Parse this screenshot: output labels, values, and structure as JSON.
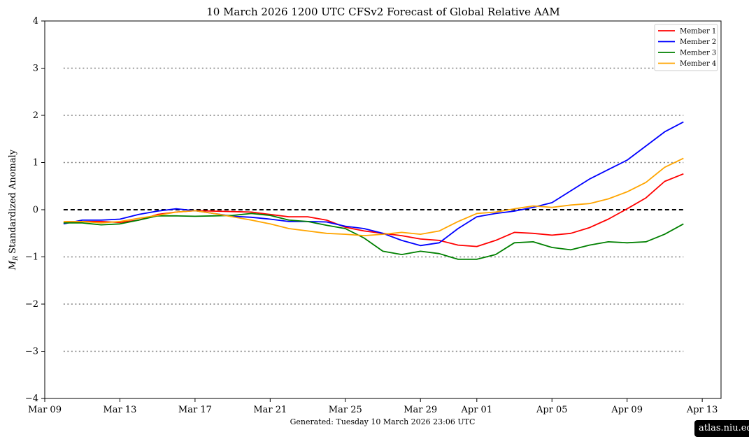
{
  "chart_data": {
    "type": "line",
    "title": "10  March  2026 1200 UTC   CFSv2 Forecast of Global Relative AAM",
    "ylabel_symbol": "M",
    "ylabel_subscript": "R",
    "ylabel_text": "Standardized Anomaly",
    "ylim": [
      -4,
      4
    ],
    "yticks": [
      {
        "value": 4,
        "label": "4"
      },
      {
        "value": 3,
        "label": "3"
      },
      {
        "value": 2,
        "label": "2"
      },
      {
        "value": 1,
        "label": "1"
      },
      {
        "value": 0,
        "label": "0"
      },
      {
        "value": -1,
        "label": "−1"
      },
      {
        "value": -2,
        "label": "−2"
      },
      {
        "value": -3,
        "label": "−3"
      },
      {
        "value": -4,
        "label": "−4"
      }
    ],
    "xlim": [
      "2026-03-09",
      "2026-04-14"
    ],
    "xticks": [
      {
        "date": "2026-03-09",
        "label": "Mar 09"
      },
      {
        "date": "2026-03-13",
        "label": "Mar 13"
      },
      {
        "date": "2026-03-17",
        "label": "Mar 17"
      },
      {
        "date": "2026-03-21",
        "label": "Mar 21"
      },
      {
        "date": "2026-03-25",
        "label": "Mar 25"
      },
      {
        "date": "2026-03-29",
        "label": "Mar 29"
      },
      {
        "date": "2026-04-01",
        "label": "Apr 01"
      },
      {
        "date": "2026-04-05",
        "label": "Apr 05"
      },
      {
        "date": "2026-04-09",
        "label": "Apr 09"
      },
      {
        "date": "2026-04-13",
        "label": "Apr 13"
      }
    ],
    "reference_lines": {
      "dashed_black": [
        0
      ],
      "dotted_gray": [
        3,
        2,
        1,
        -1,
        -2,
        -3
      ],
      "x_start": "2026-03-10",
      "x_end": "2026-04-12"
    },
    "legend_position": "top-right",
    "grid": false,
    "x": [
      "2026-03-10",
      "2026-03-11",
      "2026-03-12",
      "2026-03-13",
      "2026-03-14",
      "2026-03-15",
      "2026-03-16",
      "2026-03-17",
      "2026-03-18",
      "2026-03-19",
      "2026-03-20",
      "2026-03-21",
      "2026-03-22",
      "2026-03-23",
      "2026-03-24",
      "2026-03-25",
      "2026-03-26",
      "2026-03-27",
      "2026-03-28",
      "2026-03-29",
      "2026-03-30",
      "2026-03-31",
      "2026-04-01",
      "2026-04-02",
      "2026-04-03",
      "2026-04-04",
      "2026-04-05",
      "2026-04-06",
      "2026-04-07",
      "2026-04-08",
      "2026-04-09",
      "2026-04-10",
      "2026-04-11",
      "2026-04-12"
    ],
    "series": [
      {
        "name": "Member 1",
        "color": "#ff0000",
        "values": [
          -0.28,
          -0.25,
          -0.25,
          -0.27,
          -0.22,
          -0.1,
          -0.05,
          -0.02,
          -0.03,
          -0.04,
          -0.05,
          -0.1,
          -0.15,
          -0.15,
          -0.22,
          -0.37,
          -0.45,
          -0.5,
          -0.55,
          -0.62,
          -0.65,
          -0.75,
          -0.78,
          -0.65,
          -0.48,
          -0.5,
          -0.54,
          -0.5,
          -0.38,
          -0.2,
          0.02,
          0.25,
          0.6,
          0.76
        ]
      },
      {
        "name": "Member 2",
        "color": "#0000ff",
        "values": [
          -0.3,
          -0.22,
          -0.22,
          -0.2,
          -0.1,
          -0.03,
          0.02,
          -0.02,
          -0.08,
          -0.14,
          -0.16,
          -0.2,
          -0.25,
          -0.25,
          -0.26,
          -0.35,
          -0.4,
          -0.5,
          -0.65,
          -0.76,
          -0.7,
          -0.4,
          -0.15,
          -0.08,
          -0.03,
          0.05,
          0.15,
          0.4,
          0.65,
          0.85,
          1.05,
          1.35,
          1.65,
          1.86
        ]
      },
      {
        "name": "Member 3",
        "color": "#008000",
        "values": [
          -0.28,
          -0.28,
          -0.32,
          -0.3,
          -0.22,
          -0.13,
          -0.13,
          -0.14,
          -0.13,
          -0.12,
          -0.08,
          -0.12,
          -0.22,
          -0.25,
          -0.33,
          -0.4,
          -0.6,
          -0.88,
          -0.95,
          -0.88,
          -0.93,
          -1.05,
          -1.05,
          -0.95,
          -0.7,
          -0.68,
          -0.8,
          -0.85,
          -0.75,
          -0.68,
          -0.7,
          -0.68,
          -0.52,
          -0.3
        ]
      },
      {
        "name": "Member 4",
        "color": "#ffa500",
        "values": [
          -0.25,
          -0.25,
          -0.28,
          -0.25,
          -0.18,
          -0.12,
          -0.05,
          -0.02,
          -0.08,
          -0.15,
          -0.22,
          -0.3,
          -0.4,
          -0.45,
          -0.5,
          -0.52,
          -0.55,
          -0.52,
          -0.48,
          -0.52,
          -0.45,
          -0.25,
          -0.08,
          -0.05,
          0.02,
          0.08,
          0.05,
          0.1,
          0.13,
          0.23,
          0.38,
          0.58,
          0.9,
          1.09
        ]
      }
    ]
  },
  "footer": "Generated: Tuesday  10  March  2026  23:06 UTC",
  "watermark": "atlas.niu.edu"
}
